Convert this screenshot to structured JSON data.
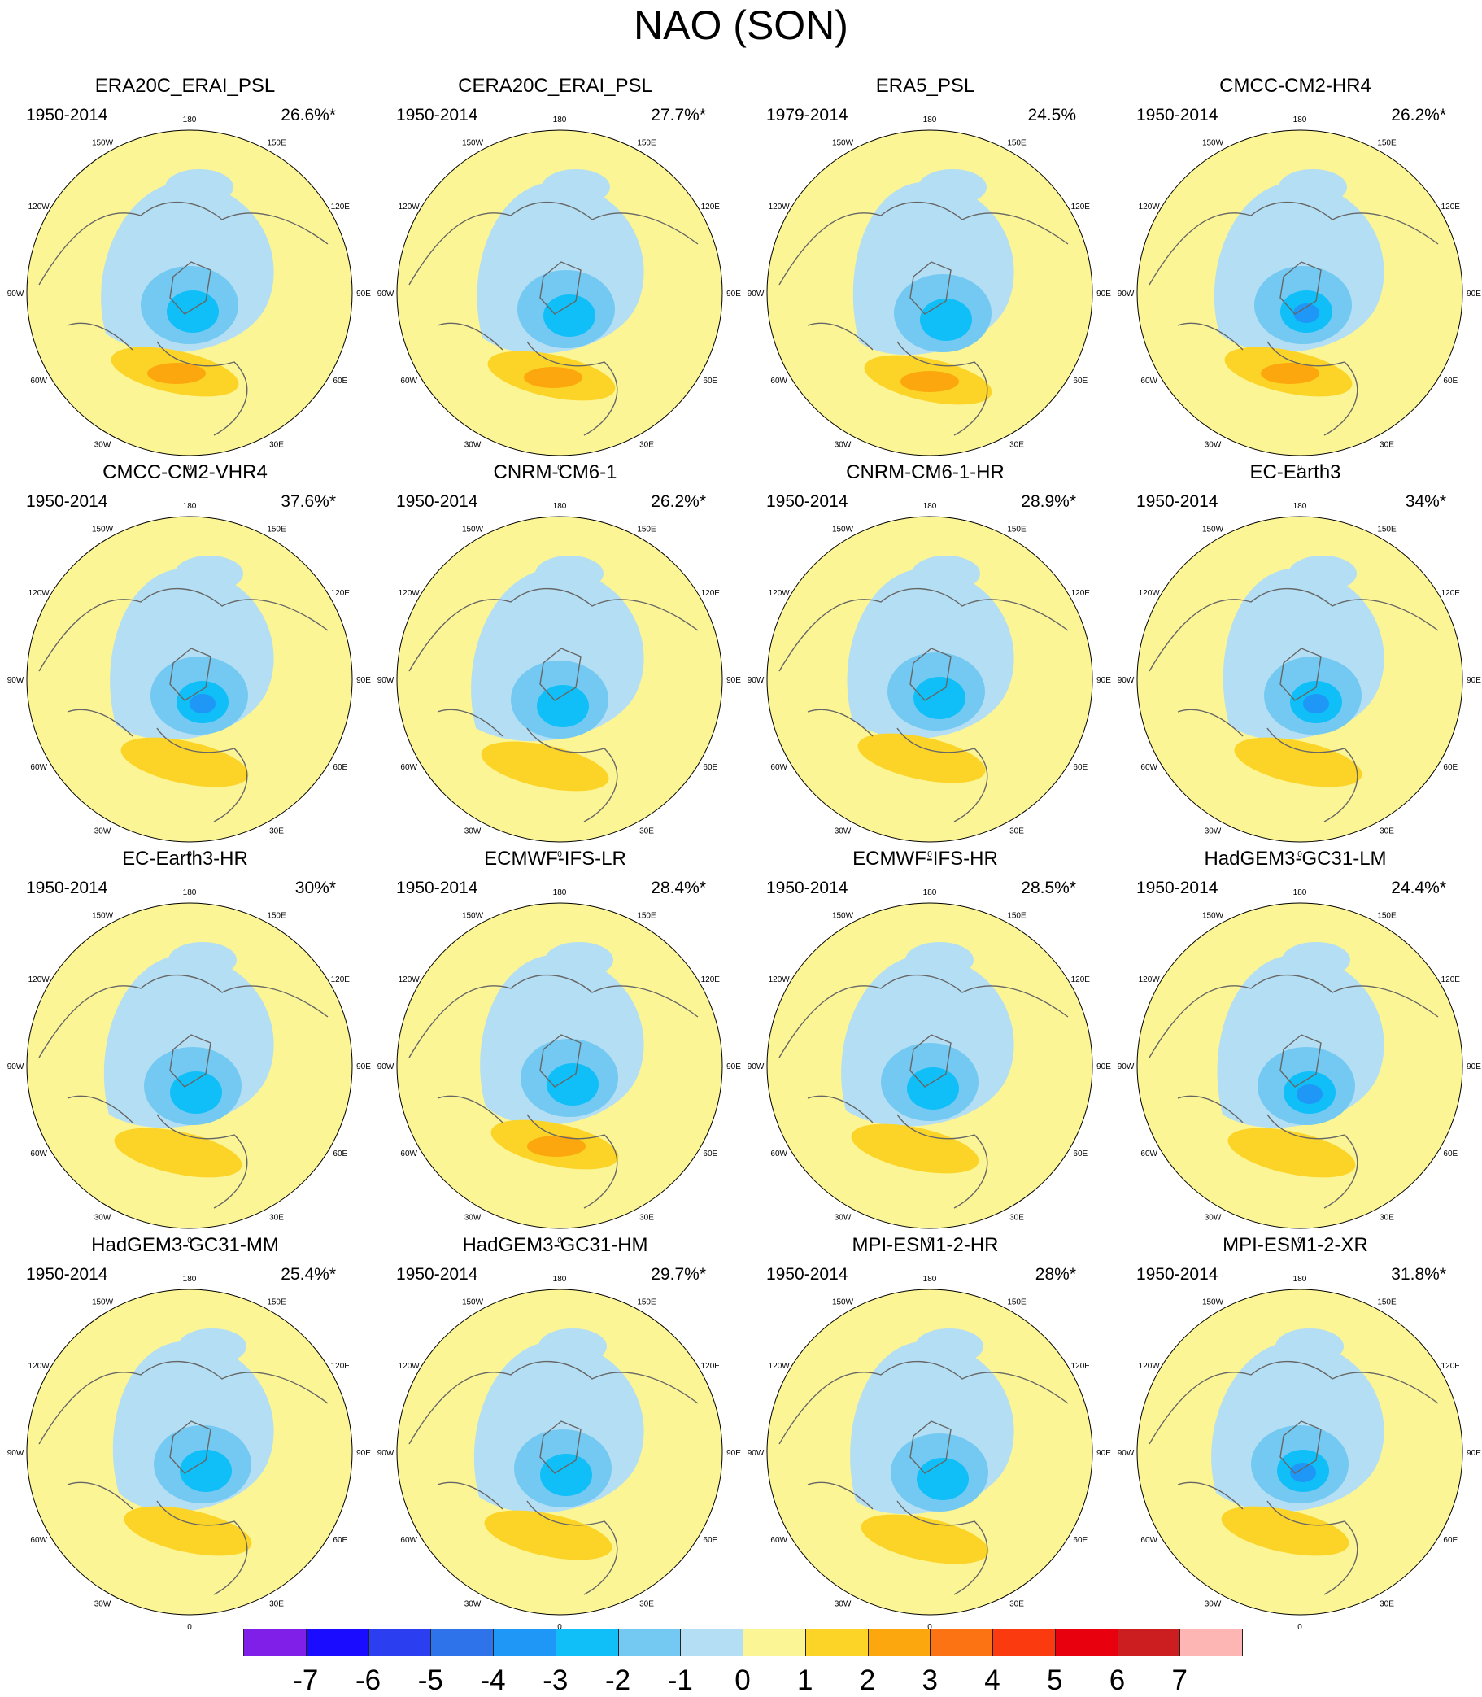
{
  "title": "NAO (SON)",
  "panels": [
    {
      "name": "ERA20C_ERAI_PSL",
      "period": "1950-2014",
      "variance": "26.6%*"
    },
    {
      "name": "CERA20C_ERAI_PSL",
      "period": "1950-2014",
      "variance": "27.7%*"
    },
    {
      "name": "ERA5_PSL",
      "period": "1979-2014",
      "variance": "24.5%"
    },
    {
      "name": "CMCC-CM2-HR4",
      "period": "1950-2014",
      "variance": "26.2%*"
    },
    {
      "name": "CMCC-CM2-VHR4",
      "period": "1950-2014",
      "variance": "37.6%*"
    },
    {
      "name": "CNRM-CM6-1",
      "period": "1950-2014",
      "variance": "26.2%*"
    },
    {
      "name": "CNRM-CM6-1-HR",
      "period": "1950-2014",
      "variance": "28.9%*"
    },
    {
      "name": "EC-Earth3",
      "period": "1950-2014",
      "variance": "34%*"
    },
    {
      "name": "EC-Earth3-HR",
      "period": "1950-2014",
      "variance": "30%*"
    },
    {
      "name": "ECMWF-IFS-LR",
      "period": "1950-2014",
      "variance": "28.4%*"
    },
    {
      "name": "ECMWF-IFS-HR",
      "period": "1950-2014",
      "variance": "28.5%*"
    },
    {
      "name": "HadGEM3-GC31-LM",
      "period": "1950-2014",
      "variance": "24.4%*"
    },
    {
      "name": "HadGEM3-GC31-MM",
      "period": "1950-2014",
      "variance": "25.4%*"
    },
    {
      "name": "HadGEM3-GC31-HM",
      "period": "1950-2014",
      "variance": "29.7%*"
    },
    {
      "name": "MPI-ESM1-2-HR",
      "period": "1950-2014",
      "variance": "28%*"
    },
    {
      "name": "MPI-ESM1-2-XR",
      "period": "1950-2014",
      "variance": "31.8%*"
    }
  ],
  "longitude_labels": [
    "180",
    "150E",
    "120E",
    "90E",
    "60E",
    "30E",
    "0",
    "30W",
    "60W",
    "90W",
    "120W",
    "150W"
  ],
  "colorbar": {
    "labels": [
      "-7",
      "-6",
      "-5",
      "-4",
      "-3",
      "-2",
      "-1",
      "0",
      "1",
      "2",
      "3",
      "4",
      "5",
      "6",
      "7"
    ],
    "colors": [
      "#7f1fe8",
      "#1a0dff",
      "#2c3ff0",
      "#2f73ea",
      "#1e97f6",
      "#10bff7",
      "#73c9f1",
      "#b4def3",
      "#fbf595",
      "#fcd428",
      "#fca70e",
      "#fb7313",
      "#fb3a0f",
      "#e8000e",
      "#cc1e20",
      "#fdb6b4"
    ]
  },
  "palette": {
    "ocean": "#fbf595",
    "neg1": "#b4def3",
    "neg2": "#73c9f1",
    "neg3": "#10bff7",
    "neg4": "#1e97f6",
    "pos1": "#fcd428",
    "pos2": "#fca70e",
    "coast": "#666666"
  }
}
